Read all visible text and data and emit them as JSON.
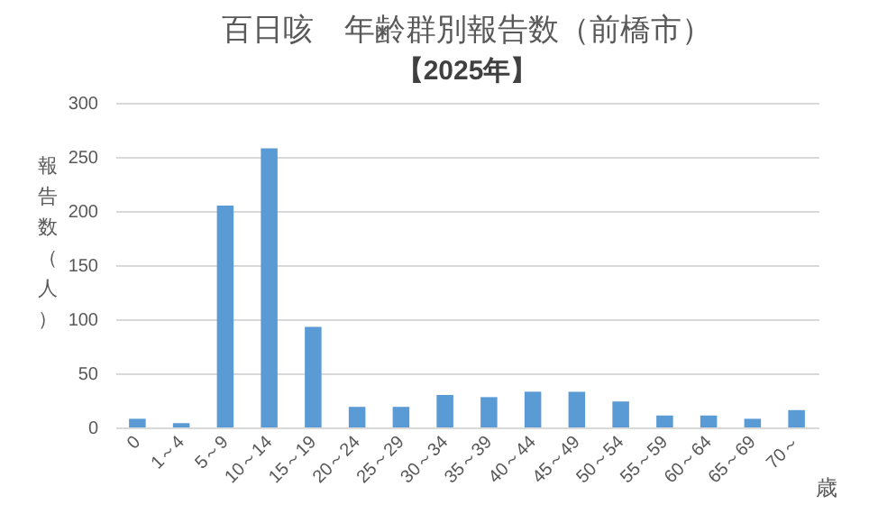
{
  "chart_data": {
    "type": "bar",
    "title": "百日咳　年齢群別報告数（前橋市）",
    "subtitle": "【2025年】",
    "xlabel": "歳",
    "ylabel": "報告数（人）",
    "categories": [
      "0",
      "1～4",
      "5～9",
      "10～14",
      "15～19",
      "20～24",
      "25～29",
      "30～34",
      "35～39",
      "40～44",
      "45～49",
      "50～54",
      "55～59",
      "60～64",
      "65～69",
      "70～"
    ],
    "values": [
      8,
      4,
      205,
      258,
      93,
      19,
      19,
      30,
      28,
      33,
      33,
      24,
      11,
      11,
      8,
      16
    ],
    "color": "#5b9bd5",
    "ylim": [
      0,
      300
    ],
    "yticks": [
      0,
      50,
      100,
      150,
      200,
      250,
      300
    ],
    "grid": "y"
  }
}
